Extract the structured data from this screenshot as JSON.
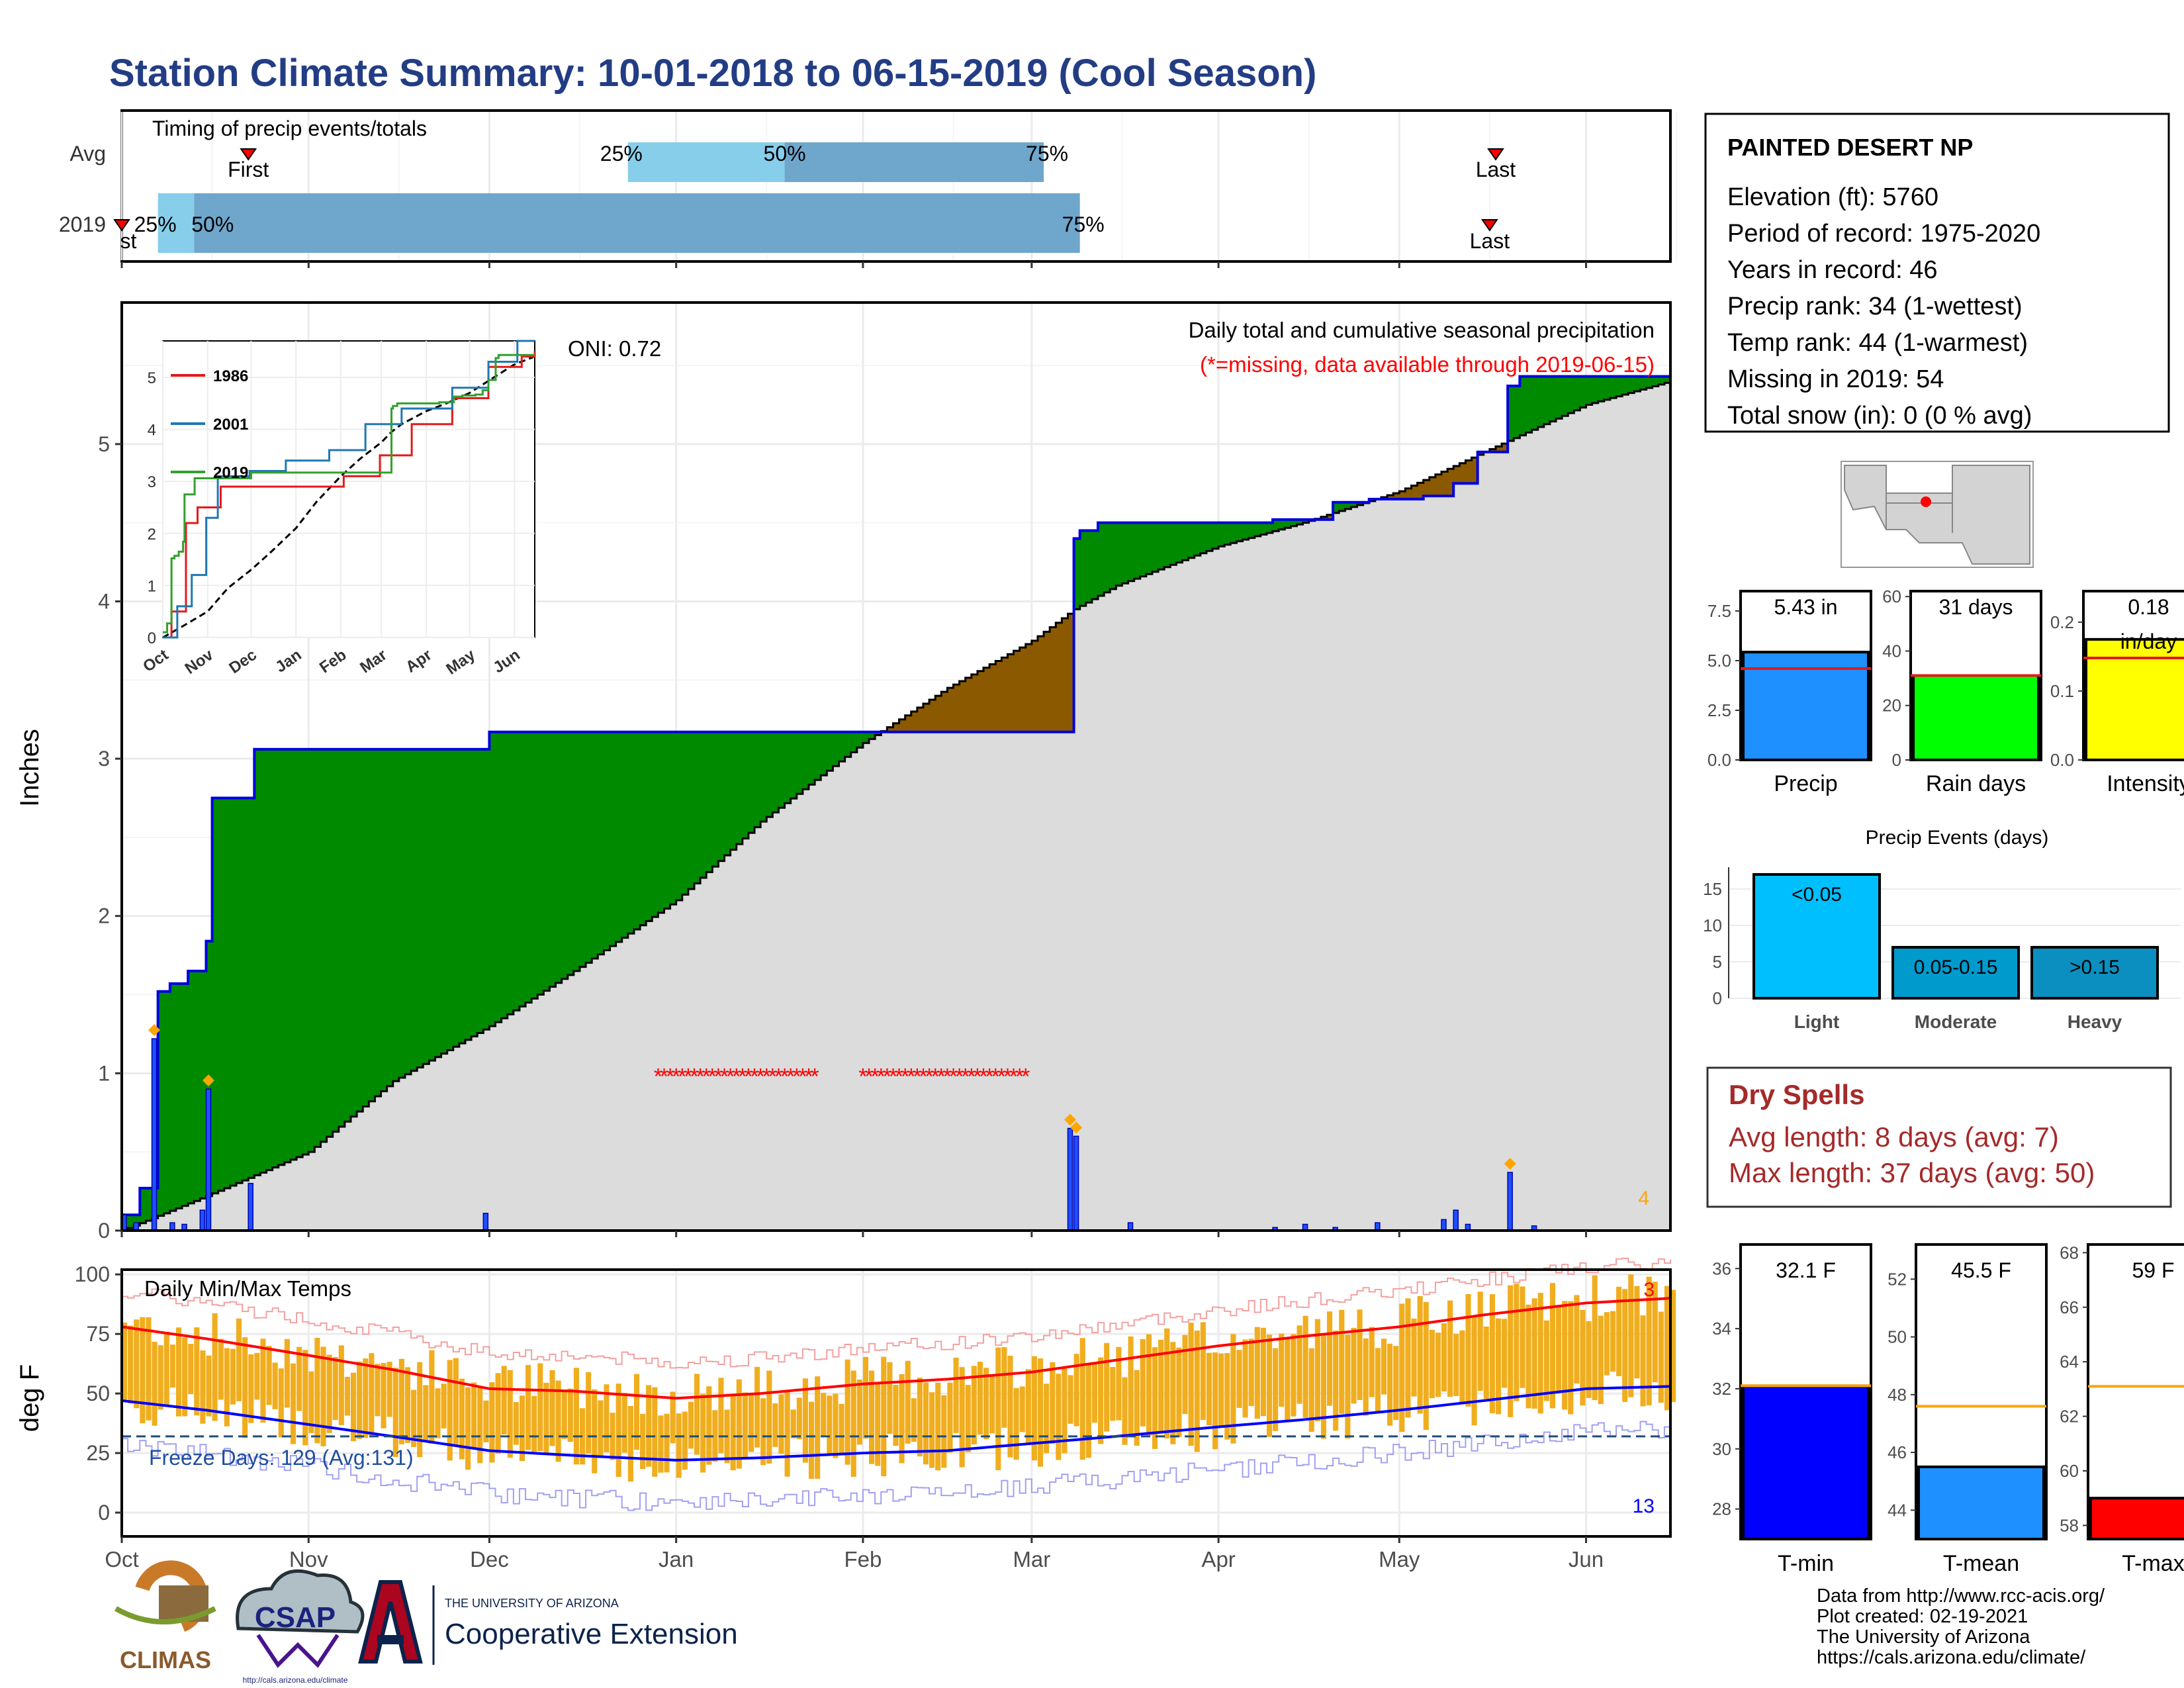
{
  "page": {
    "title": "Station Climate Summary: 10-01-2018 to 06-15-2019 (Cool Season)"
  },
  "timing": {
    "label": "Timing of precip events/totals",
    "rows": [
      {
        "name": "Avg",
        "first_day": 21,
        "p25_day": 84,
        "p50_day": 110,
        "p75_day": 153,
        "last_day": 228,
        "first_label": "First",
        "last_label": "Last",
        "p25": "25%",
        "p50": "50%",
        "p75": "75%"
      },
      {
        "name": "2019",
        "first_day": 0,
        "p25_day": 6,
        "p50_day": 12,
        "p75_day": 159,
        "last_day": 227,
        "first_label": "First",
        "last_label": "Last",
        "p25": "25%",
        "p50": "50%",
        "p75": "75%"
      }
    ],
    "colors": {
      "light": "#87ceeb",
      "dark": "#6fa6cc"
    }
  },
  "station": {
    "name": "PAINTED DESERT NP",
    "lines": [
      "Elevation (ft): 5760",
      "Period of record: 1975-2020",
      "Years in record: 46",
      "Precip rank: 34 (1-wettest)",
      "Temp rank: 44 (1-warmest)",
      "Missing in 2019: 54",
      "Total snow (in): 0 (0 % avg)"
    ]
  },
  "precip_panel": {
    "title": "Daily total and cumulative seasonal precipitation",
    "subtitle": "(*=missing, data available through 2019-06-15)",
    "oni": "ONI: 0.72",
    "ylabel": "Inches",
    "corner_count": "4",
    "colors": {
      "above": "#008a00",
      "below": "#8b5a00",
      "cum_line": "#0000e0",
      "avg_fill": "#dcdcdc",
      "missing": "#ff0000",
      "extreme": "#ffa500"
    }
  },
  "inset": {
    "series": [
      {
        "name": "1986",
        "color": "#e31a1c"
      },
      {
        "name": "2001",
        "color": "#1f78b4"
      },
      {
        "name": "2019",
        "color": "#33a02c"
      }
    ],
    "ylim": [
      0,
      5.7
    ],
    "yticks": [
      "0",
      "1",
      "2",
      "3",
      "4",
      "5"
    ],
    "month_labels": [
      "Oct",
      "Nov",
      "Dec",
      "Jan",
      "Feb",
      "Mar",
      "Apr",
      "May",
      "Jun"
    ]
  },
  "bars": {
    "precip": {
      "label": "Precip",
      "value_label": "5.43 in",
      "value": 5.43,
      "avg": 4.6,
      "max": 8.5,
      "ticks": [
        "0.0",
        "2.5",
        "5.0",
        "7.5"
      ],
      "color": "#1e90ff"
    },
    "raindays": {
      "label": "Rain days",
      "value_label": "31 days",
      "value": 31,
      "avg": 31,
      "max": 62,
      "ticks": [
        "0",
        "20",
        "40",
        "60"
      ],
      "color": "#00ff00"
    },
    "intensity": {
      "label": "Intensity",
      "value_label1": "0.18",
      "value_label2": "in/day",
      "value": 0.175,
      "avg": 0.148,
      "max": 0.245,
      "ticks": [
        "0.0",
        "0.1",
        "0.2"
      ],
      "color": "#ffff00"
    }
  },
  "events": {
    "title": "Precip Events (days)",
    "categories": [
      "Light",
      "Moderate",
      "Heavy"
    ],
    "labels": [
      "<0.05",
      "0.05-0.15",
      ">0.15"
    ],
    "values": [
      17,
      7,
      7
    ],
    "colors": [
      "#00bfff",
      "#009acd",
      "#0a8fc0"
    ],
    "yticks": [
      "0",
      "5",
      "10",
      "15"
    ]
  },
  "dry": {
    "title": "Dry Spells",
    "avg": "Avg length: 8 days (avg: 7)",
    "max": "Max length: 37 days (avg: 50)"
  },
  "temp_panel": {
    "title": "Daily Min/Max Temps",
    "freeze": "Freeze Days: 129 (Avg:131)",
    "ylabel": "deg F",
    "yticks": [
      "0",
      "25",
      "50",
      "75",
      "100"
    ],
    "corner_top": "3",
    "corner_bottom": "13",
    "freeze_line": 32
  },
  "temps": {
    "tmin": {
      "label": "T-min",
      "value_label": "32.1 F",
      "value": 32.1,
      "avg": 32.1,
      "min": 27,
      "max": 36.8,
      "ticks": [
        "28",
        "30",
        "32",
        "34",
        "36"
      ],
      "color": "#0000ff"
    },
    "tmean": {
      "label": "T-mean",
      "value_label": "45.5 F",
      "value": 45.5,
      "avg": 47.6,
      "min": 43,
      "max": 53.2,
      "ticks": [
        "44",
        "46",
        "48",
        "50",
        "52"
      ],
      "color": "#1e90ff"
    },
    "tmax": {
      "label": "T-max",
      "value_label": "59 F",
      "value": 59,
      "avg": 63.1,
      "min": 57.5,
      "max": 68.3,
      "ticks": [
        "58",
        "60",
        "62",
        "64",
        "66",
        "68"
      ],
      "color": "#ff0000"
    }
  },
  "months": [
    "Oct",
    "Nov",
    "Dec",
    "Jan",
    "Feb",
    "Mar",
    "Apr",
    "May",
    "Jun"
  ],
  "credits": {
    "lines": [
      "Data from http://www.rcc-acis.org/",
      "Plot created: 02-19-2021",
      "The University of Arizona",
      "https://cals.arizona.edu/climate/"
    ],
    "climas": "CLIMAS",
    "csap": "CSAP",
    "csap_url": "http://cals.arizona.edu/climate",
    "ua_small": "THE UNIVERSITY OF ARIZONA",
    "ua_large": "Cooperative Extension"
  },
  "chart_data": {
    "type": "area",
    "title": "Daily total and cumulative seasonal precipitation",
    "ylabel": "Inches",
    "ylim": [
      0,
      5.9
    ],
    "x_start": "2018-10-01",
    "x_end": "2019-06-15",
    "cumulative_2019": [
      [
        "2018-10-01",
        0.1
      ],
      [
        "2018-10-04",
        0.27
      ],
      [
        "2018-10-07",
        1.52
      ],
      [
        "2018-10-09",
        1.57
      ],
      [
        "2018-10-12",
        1.65
      ],
      [
        "2018-10-15",
        1.84
      ],
      [
        "2018-10-16",
        2.75
      ],
      [
        "2018-10-23",
        3.06
      ],
      [
        "2018-12-01",
        3.17
      ],
      [
        "2019-02-06",
        3.17
      ],
      [
        "2019-03-08",
        4.4
      ],
      [
        "2019-03-09",
        4.45
      ],
      [
        "2019-03-12",
        4.5
      ],
      [
        "2019-04-10",
        4.52
      ],
      [
        "2019-04-20",
        4.63
      ],
      [
        "2019-04-26",
        4.65
      ],
      [
        "2019-05-05",
        4.67
      ],
      [
        "2019-05-10",
        4.75
      ],
      [
        "2019-05-14",
        4.95
      ],
      [
        "2019-05-19",
        5.37
      ],
      [
        "2019-05-21",
        5.43
      ],
      [
        "2019-06-15",
        5.43
      ]
    ],
    "cumulative_avg": [
      [
        "2018-10-01",
        0.0
      ],
      [
        "2018-10-15",
        0.22
      ],
      [
        "2018-11-01",
        0.5
      ],
      [
        "2018-11-15",
        0.95
      ],
      [
        "2018-12-01",
        1.3
      ],
      [
        "2018-12-15",
        1.65
      ],
      [
        "2019-01-01",
        2.1
      ],
      [
        "2019-01-15",
        2.6
      ],
      [
        "2019-02-01",
        3.1
      ],
      [
        "2019-02-15",
        3.45
      ],
      [
        "2019-03-01",
        3.75
      ],
      [
        "2019-03-08",
        3.95
      ],
      [
        "2019-03-15",
        4.1
      ],
      [
        "2019-04-01",
        4.35
      ],
      [
        "2019-04-15",
        4.5
      ],
      [
        "2019-05-01",
        4.7
      ],
      [
        "2019-05-15",
        4.95
      ],
      [
        "2019-06-01",
        5.25
      ],
      [
        "2019-06-15",
        5.4
      ]
    ],
    "daily_2019": [
      [
        "2018-10-01",
        0.1
      ],
      [
        "2018-10-03",
        0.05
      ],
      [
        "2018-10-06",
        1.22
      ],
      [
        "2018-10-09",
        0.05
      ],
      [
        "2018-10-11",
        0.04
      ],
      [
        "2018-10-14",
        0.13
      ],
      [
        "2018-10-15",
        0.9
      ],
      [
        "2018-10-22",
        0.3
      ],
      [
        "2018-11-30",
        0.11
      ],
      [
        "2019-03-07",
        0.65
      ],
      [
        "2019-03-08",
        0.6
      ],
      [
        "2019-03-17",
        0.05
      ],
      [
        "2019-04-10",
        0.02
      ],
      [
        "2019-04-15",
        0.04
      ],
      [
        "2019-04-20",
        0.02
      ],
      [
        "2019-04-27",
        0.05
      ],
      [
        "2019-05-08",
        0.07
      ],
      [
        "2019-05-10",
        0.13
      ],
      [
        "2019-05-12",
        0.04
      ],
      [
        "2019-05-19",
        0.37
      ],
      [
        "2019-05-23",
        0.03
      ]
    ],
    "missing": [
      [
        "2018-12-29",
        "2019-01-24"
      ],
      [
        "2019-02-01",
        "2019-02-28"
      ]
    ],
    "temperature_axis": {
      "ylabel": "deg F",
      "ylim": [
        -10,
        100
      ]
    },
    "temperature_avg_max": [
      [
        "2018-10-01",
        78
      ],
      [
        "2018-10-15",
        73
      ],
      [
        "2018-11-01",
        66
      ],
      [
        "2018-11-15",
        60
      ],
      [
        "2018-12-01",
        52
      ],
      [
        "2018-12-15",
        51
      ],
      [
        "2019-01-01",
        48
      ],
      [
        "2019-01-15",
        50
      ],
      [
        "2019-02-01",
        54
      ],
      [
        "2019-02-15",
        56
      ],
      [
        "2019-03-01",
        59
      ],
      [
        "2019-03-15",
        64
      ],
      [
        "2019-04-01",
        70
      ],
      [
        "2019-04-15",
        74
      ],
      [
        "2019-05-01",
        78
      ],
      [
        "2019-05-15",
        83
      ],
      [
        "2019-06-01",
        88
      ],
      [
        "2019-06-15",
        90
      ]
    ],
    "temperature_avg_min": [
      [
        "2018-10-01",
        47
      ],
      [
        "2018-10-15",
        43
      ],
      [
        "2018-11-01",
        37
      ],
      [
        "2018-11-15",
        32
      ],
      [
        "2018-12-01",
        26
      ],
      [
        "2018-12-15",
        24
      ],
      [
        "2019-01-01",
        22
      ],
      [
        "2019-01-15",
        23
      ],
      [
        "2019-02-01",
        25
      ],
      [
        "2019-02-15",
        26
      ],
      [
        "2019-03-01",
        29
      ],
      [
        "2019-03-15",
        32
      ],
      [
        "2019-04-01",
        36
      ],
      [
        "2019-04-15",
        39
      ],
      [
        "2019-05-01",
        43
      ],
      [
        "2019-05-15",
        47
      ],
      [
        "2019-06-01",
        52
      ],
      [
        "2019-06-15",
        53
      ]
    ]
  }
}
